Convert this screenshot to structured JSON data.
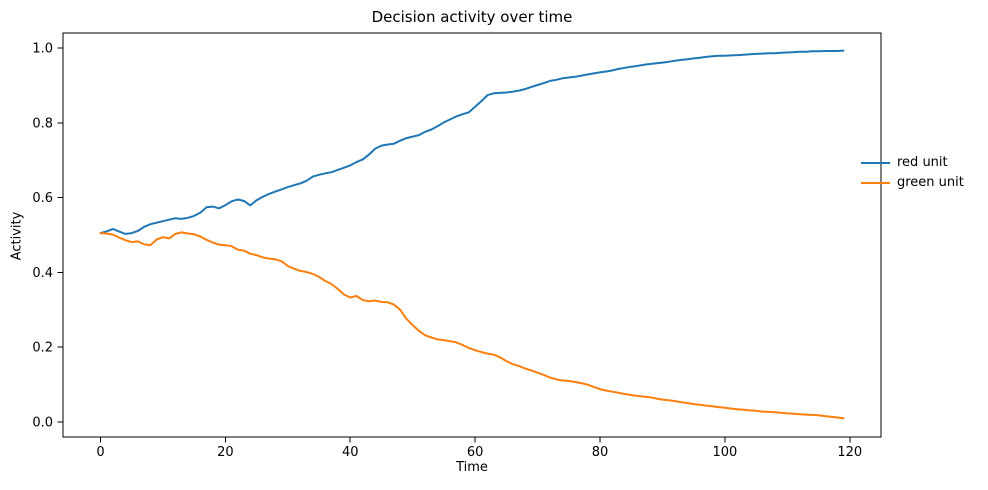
{
  "chart_data": {
    "type": "line",
    "title": "Decision activity over time",
    "xlabel": "Time",
    "ylabel": "Activity",
    "xlim": [
      -6,
      125
    ],
    "ylim": [
      -0.04,
      1.04
    ],
    "x_start": 0,
    "x_step": 1,
    "x_ticks": [
      0,
      20,
      40,
      60,
      80,
      100,
      120
    ],
    "x_tick_labels": [
      "0",
      "20",
      "40",
      "60",
      "80",
      "100",
      "120"
    ],
    "y_ticks": [
      0.0,
      0.2,
      0.4,
      0.6,
      0.8,
      1.0
    ],
    "y_tick_labels": [
      "0.0",
      "0.2",
      "0.4",
      "0.6",
      "0.8",
      "1.0"
    ],
    "grid": false,
    "legend_position": "center-right-outside",
    "axis_color": "#000000",
    "background_color": "#ffffff",
    "series": [
      {
        "name": "red unit",
        "color": "#1f77b4",
        "values": [
          0.505,
          0.51,
          0.516,
          0.509,
          0.503,
          0.505,
          0.511,
          0.522,
          0.529,
          0.533,
          0.537,
          0.541,
          0.545,
          0.543,
          0.546,
          0.551,
          0.56,
          0.574,
          0.576,
          0.571,
          0.58,
          0.59,
          0.595,
          0.591,
          0.579,
          0.593,
          0.602,
          0.61,
          0.616,
          0.622,
          0.628,
          0.633,
          0.638,
          0.645,
          0.656,
          0.661,
          0.665,
          0.668,
          0.674,
          0.68,
          0.686,
          0.695,
          0.702,
          0.715,
          0.731,
          0.739,
          0.742,
          0.744,
          0.752,
          0.759,
          0.763,
          0.767,
          0.776,
          0.782,
          0.791,
          0.801,
          0.809,
          0.817,
          0.823,
          0.828,
          0.843,
          0.858,
          0.874,
          0.879,
          0.88,
          0.881,
          0.883,
          0.886,
          0.89,
          0.896,
          0.901,
          0.906,
          0.912,
          0.915,
          0.919,
          0.921,
          0.923,
          0.926,
          0.929,
          0.932,
          0.935,
          0.937,
          0.94,
          0.944,
          0.947,
          0.95,
          0.952,
          0.955,
          0.957,
          0.959,
          0.961,
          0.963,
          0.966,
          0.968,
          0.97,
          0.972,
          0.974,
          0.976,
          0.978,
          0.979,
          0.979,
          0.98,
          0.981,
          0.982,
          0.983,
          0.984,
          0.985,
          0.986,
          0.986,
          0.987,
          0.988,
          0.989,
          0.99,
          0.99,
          0.991,
          0.991,
          0.992,
          0.992,
          0.992,
          0.993
        ]
      },
      {
        "name": "green unit",
        "color": "#ff7f0e",
        "values": [
          0.505,
          0.504,
          0.501,
          0.493,
          0.486,
          0.481,
          0.483,
          0.475,
          0.473,
          0.488,
          0.494,
          0.491,
          0.503,
          0.507,
          0.504,
          0.502,
          0.496,
          0.487,
          0.48,
          0.474,
          0.473,
          0.47,
          0.461,
          0.458,
          0.45,
          0.446,
          0.44,
          0.437,
          0.435,
          0.43,
          0.417,
          0.41,
          0.404,
          0.401,
          0.396,
          0.388,
          0.377,
          0.369,
          0.356,
          0.341,
          0.333,
          0.337,
          0.326,
          0.323,
          0.325,
          0.321,
          0.32,
          0.314,
          0.3,
          0.276,
          0.259,
          0.244,
          0.232,
          0.226,
          0.221,
          0.219,
          0.216,
          0.213,
          0.206,
          0.198,
          0.192,
          0.187,
          0.183,
          0.18,
          0.173,
          0.163,
          0.155,
          0.15,
          0.143,
          0.138,
          0.132,
          0.126,
          0.119,
          0.114,
          0.111,
          0.11,
          0.107,
          0.104,
          0.1,
          0.094,
          0.088,
          0.084,
          0.081,
          0.078,
          0.075,
          0.072,
          0.07,
          0.068,
          0.066,
          0.063,
          0.06,
          0.058,
          0.056,
          0.053,
          0.051,
          0.048,
          0.046,
          0.044,
          0.042,
          0.04,
          0.038,
          0.036,
          0.034,
          0.033,
          0.031,
          0.03,
          0.028,
          0.027,
          0.026,
          0.025,
          0.023,
          0.022,
          0.021,
          0.02,
          0.019,
          0.018,
          0.016,
          0.014,
          0.012,
          0.01
        ]
      }
    ]
  }
}
